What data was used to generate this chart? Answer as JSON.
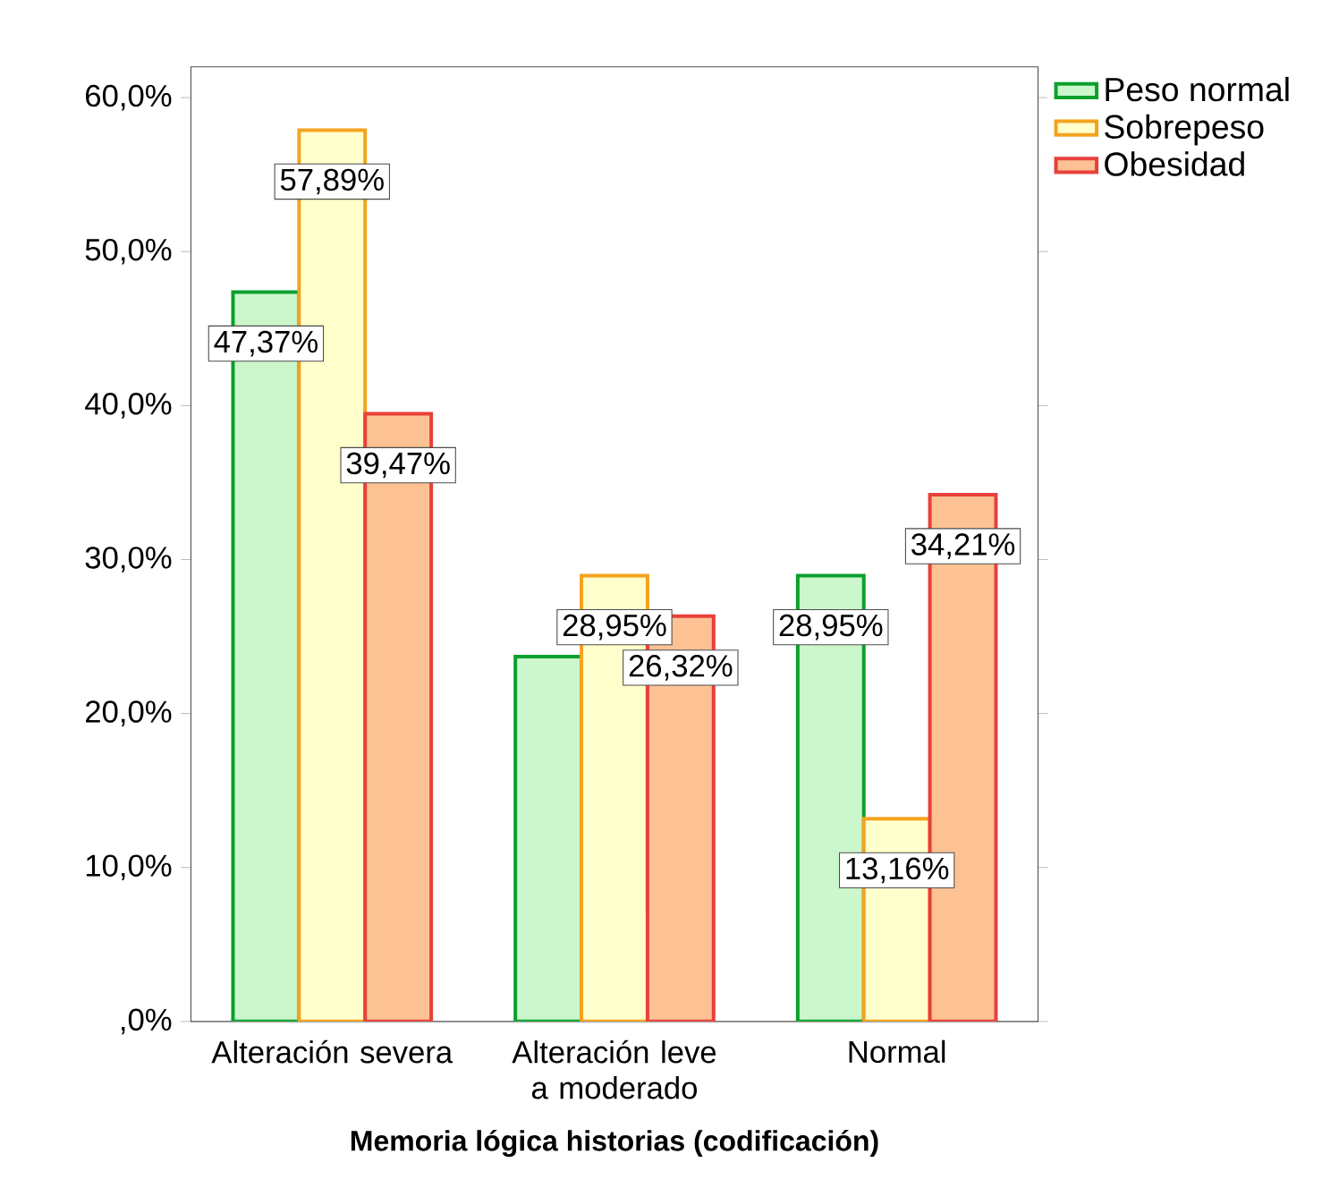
{
  "chart_data": {
    "type": "bar",
    "xlabel": "**Memoria lógica historias (codificación)**",
    "categories": [
      "Alteración severa",
      "Alteración leve a moderado",
      "Normal"
    ],
    "series": [
      {
        "name": "Peso normal",
        "color": "#ccf7cc",
        "values": [
          47.37,
          23.7,
          28.95
        ],
        "value_labels": [
          "47,37%",
          null,
          "28,95%"
        ]
      },
      {
        "name": "Sobrepeso",
        "color": "#ffffcc",
        "values": [
          57.89,
          28.95,
          13.16
        ],
        "value_labels": [
          "57,89%",
          "28,95%",
          "13,16%"
        ]
      },
      {
        "name": "Obesidad",
        "color": "#fcc294",
        "values": [
          39.47,
          26.32,
          34.21
        ],
        "value_labels": [
          "39,47%",
          "26,32%",
          "34,21%"
        ]
      }
    ],
    "ylim": [
      0,
      62
    ],
    "yticks": [
      {
        "value": 0,
        "label": ",0%"
      },
      {
        "value": 10,
        "label": "10,0%"
      },
      {
        "value": 20,
        "label": "20,0%"
      },
      {
        "value": 30,
        "label": "30,0%"
      },
      {
        "value": 40,
        "label": "40,0%"
      },
      {
        "value": 50,
        "label": "50,0%"
      },
      {
        "value": 60,
        "label": "60,0%"
      }
    ],
    "grid": false,
    "legend": "right"
  }
}
